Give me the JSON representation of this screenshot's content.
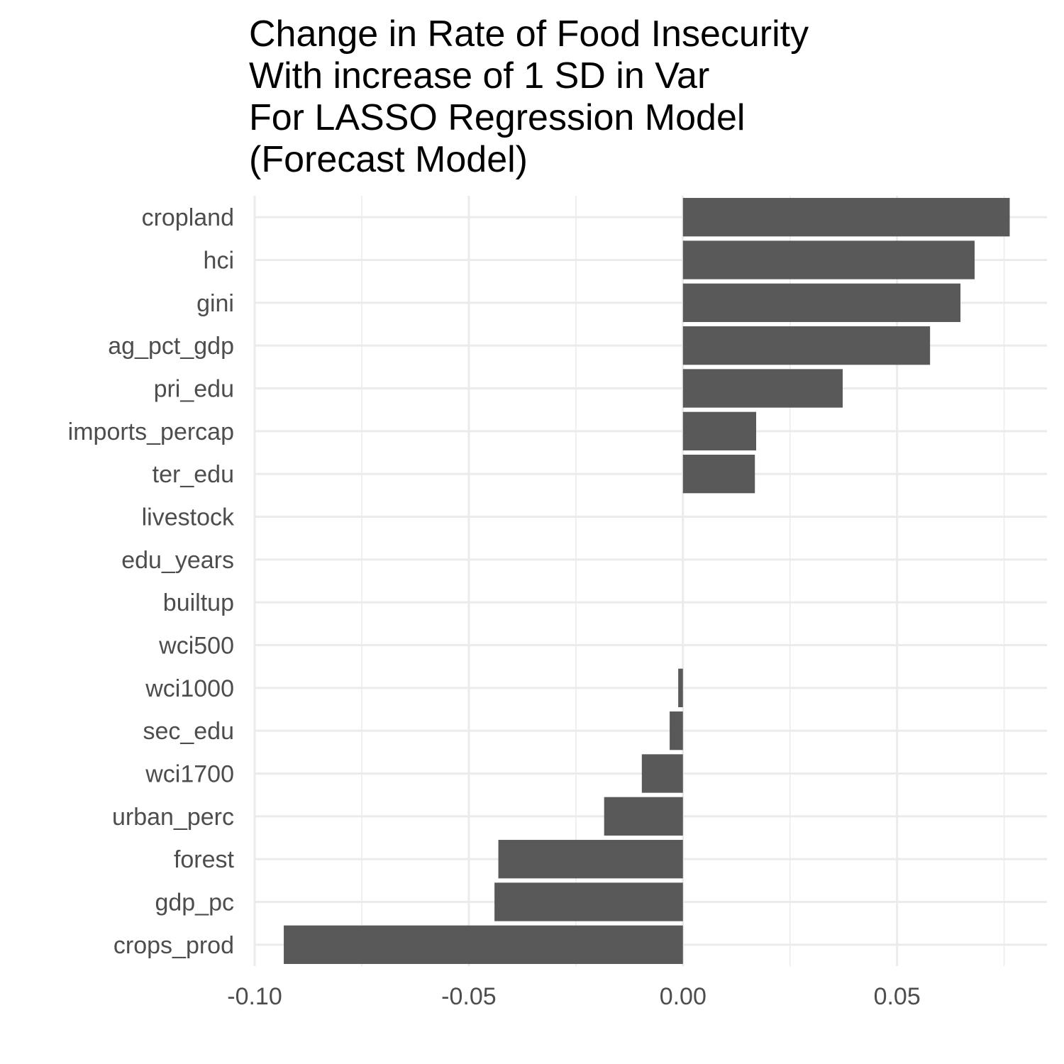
{
  "chart_data": {
    "type": "bar",
    "orientation": "horizontal",
    "title_lines": [
      "Change in Rate of Food Insecurity",
      "With increase of 1 SD in Var",
      "For LASSO Regression Model",
      "(Forecast Model)"
    ],
    "categories": [
      "cropland",
      "hci",
      "gini",
      "ag_pct_gdp",
      "pri_edu",
      "imports_percap",
      "ter_edu",
      "livestock",
      "edu_years",
      "builtup",
      "wci500",
      "wci1000",
      "sec_edu",
      "wci1700",
      "urban_perc",
      "forest",
      "gdp_pc",
      "crops_prod"
    ],
    "values": [
      0.0763,
      0.0681,
      0.0648,
      0.0577,
      0.0373,
      0.0171,
      0.0168,
      0,
      0,
      0,
      0,
      -0.0011,
      -0.0031,
      -0.0096,
      -0.0184,
      -0.0431,
      -0.044,
      -0.0932
    ],
    "xlim": [
      -0.1,
      0.085
    ],
    "xticks": [
      -0.1,
      -0.05,
      0,
      0.05
    ],
    "xtick_labels": [
      "-0.10",
      "-0.05",
      "0.00",
      "0.05"
    ],
    "xlabel": "",
    "ylabel": "",
    "grid": true,
    "bar_color": "#595959",
    "grid_color": "#ebebeb"
  }
}
